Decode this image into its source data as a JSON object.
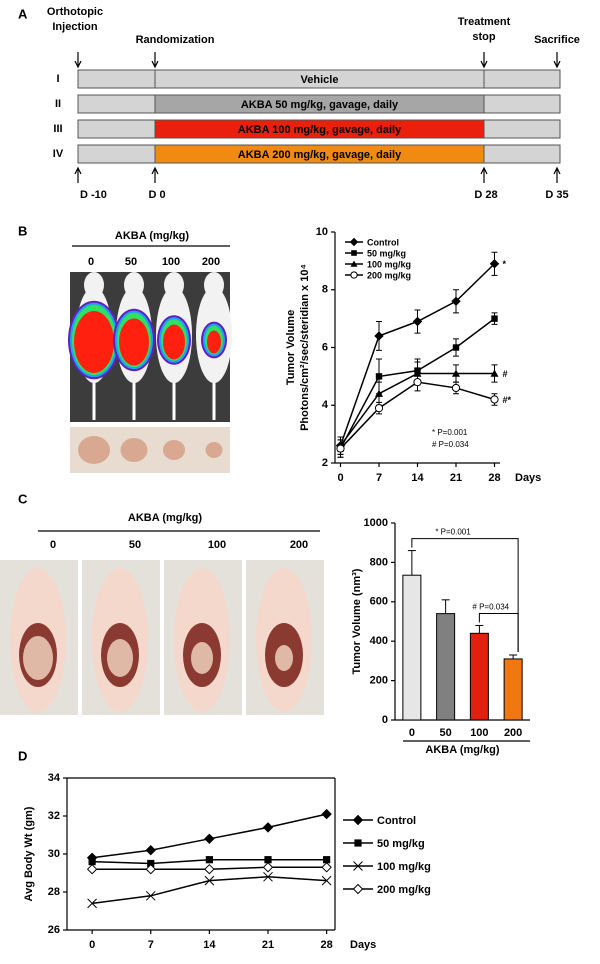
{
  "panel_labels": [
    "A",
    "B",
    "C",
    "D"
  ],
  "timeline": {
    "events": [
      {
        "label": [
          "Orthotopic",
          "Injection"
        ],
        "day": "D -10"
      },
      {
        "label": [
          "Randomization"
        ],
        "day": "D 0"
      },
      {
        "label": [
          "Treatment",
          "stop"
        ],
        "day": "D 28"
      },
      {
        "label": [
          "Sacrifice"
        ],
        "day": "D 35"
      }
    ],
    "groups": [
      {
        "numeral": "I",
        "text": "Vehicle",
        "color": "#d4d4d4"
      },
      {
        "numeral": "II",
        "text": "AKBA  50 mg/kg, gavage, daily",
        "color": "#a6a6a6"
      },
      {
        "numeral": "III",
        "text": "AKBA  100 mg/kg, gavage, daily",
        "color": "#e8200c"
      },
      {
        "numeral": "IV",
        "text": "AKBA  200 mg/kg, gavage, daily",
        "color": "#f08a10"
      }
    ]
  },
  "photo_b": {
    "title": "AKBA (mg/kg)",
    "doses": [
      "0",
      "50",
      "100",
      "200"
    ]
  },
  "photo_c": {
    "title": "AKBA (mg/kg)",
    "doses": [
      "0",
      "50",
      "100",
      "200"
    ]
  },
  "chart_data": [
    {
      "type": "line",
      "x": [
        0,
        7,
        14,
        21,
        28
      ],
      "xlim": [
        -1,
        29
      ],
      "xticks": [
        0,
        7,
        14,
        21,
        28
      ],
      "ylim": [
        2,
        10
      ],
      "yticks": [
        2,
        4,
        6,
        8,
        10
      ],
      "ylabel": [
        "Tumor Volume",
        "Photons/cm²/sec/steridian x 10⁴"
      ],
      "xlabel": "Days",
      "legend": "top-left",
      "series": [
        {
          "name": "Control",
          "color": "#000000",
          "marker": "diamond",
          "values": [
            2.6,
            6.4,
            6.9,
            7.6,
            8.9
          ],
          "errors": [
            0.3,
            0.5,
            0.4,
            0.4,
            0.4
          ],
          "end_label": "*"
        },
        {
          "name": "50 mg/kg",
          "color": "#000000",
          "marker": "square",
          "values": [
            2.5,
            5.0,
            5.2,
            6.0,
            7.0
          ],
          "errors": [
            0.3,
            0.6,
            0.4,
            0.3,
            0.2
          ]
        },
        {
          "name": "100 mg/kg",
          "color": "#000000",
          "marker": "triangle",
          "values": [
            2.6,
            4.4,
            5.1,
            5.1,
            5.1
          ],
          "errors": [
            0.3,
            0.4,
            0.4,
            0.3,
            0.3
          ],
          "end_label": "#"
        },
        {
          "name": "200 mg/kg",
          "color": "#000000",
          "marker": "circle-open",
          "values": [
            2.5,
            3.9,
            4.8,
            4.6,
            4.2
          ],
          "errors": [
            0.3,
            0.2,
            0.3,
            0.2,
            0.2
          ],
          "end_label": "#*"
        }
      ],
      "notes": [
        "* P=0.001",
        "# P=0.034"
      ]
    },
    {
      "type": "bar",
      "categories": [
        "0",
        "50",
        "100",
        "200"
      ],
      "values": [
        735,
        540,
        440,
        310
      ],
      "errors": [
        125,
        70,
        40,
        20
      ],
      "colors": [
        "#e6e6e6",
        "#808080",
        "#e2200e",
        "#f07812"
      ],
      "ylim": [
        0,
        1000
      ],
      "yticks": [
        0,
        200,
        400,
        600,
        800,
        1000
      ],
      "ylabel": "Tumor Volume (nm³)",
      "xlabel": "AKBA (mg/kg)",
      "comparisons": [
        {
          "between": [
            "0",
            "200"
          ],
          "label": "* P=0.001"
        },
        {
          "between": [
            "100",
            "200"
          ],
          "label": "# P=0.034"
        }
      ]
    },
    {
      "type": "line",
      "x": [
        0,
        7,
        14,
        21,
        28
      ],
      "xlim": [
        -3,
        29
      ],
      "xticks": [
        0,
        7,
        14,
        21,
        28
      ],
      "ylim": [
        26,
        34
      ],
      "yticks": [
        26,
        28,
        30,
        32,
        34
      ],
      "ylabel": "Avg Body Wt (gm)",
      "xlabel": "Days",
      "legend": "right",
      "series": [
        {
          "name": "Control",
          "color": "#000000",
          "marker": "diamond",
          "values": [
            29.8,
            30.2,
            30.8,
            31.4,
            32.1
          ]
        },
        {
          "name": "50 mg/kg",
          "color": "#000000",
          "marker": "square",
          "values": [
            29.6,
            29.5,
            29.7,
            29.7,
            29.7
          ]
        },
        {
          "name": "100 mg/kg",
          "color": "#000000",
          "marker": "x",
          "values": [
            27.4,
            27.8,
            28.6,
            28.8,
            28.6
          ]
        },
        {
          "name": "200 mg/kg",
          "color": "#000000",
          "marker": "diamond-open",
          "values": [
            29.2,
            29.2,
            29.2,
            29.3,
            29.3
          ]
        }
      ]
    }
  ]
}
